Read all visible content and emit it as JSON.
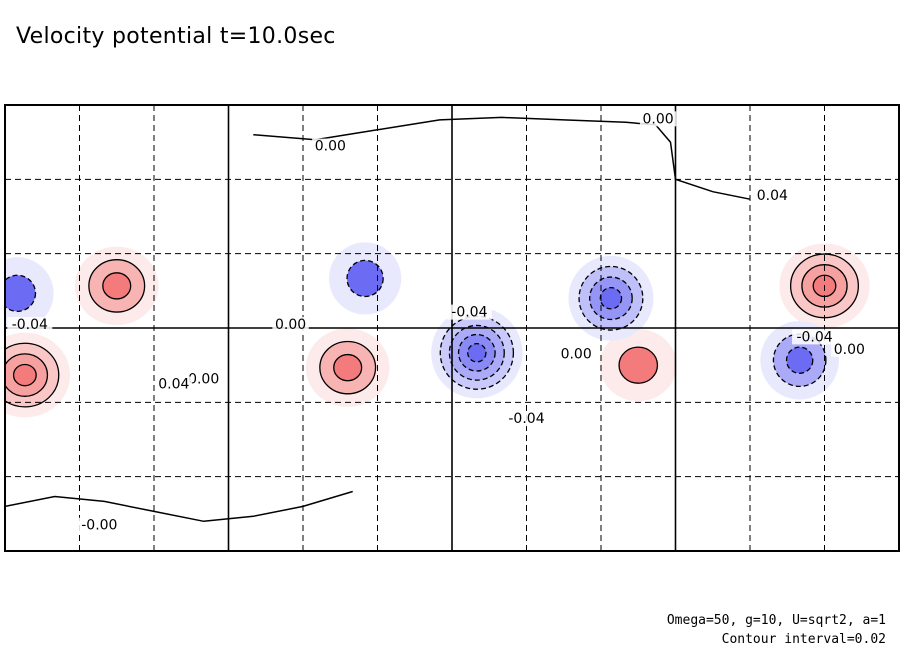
{
  "title": "Velocity potential t=10.0sec",
  "notes": {
    "parameters": "Omega=50, g=10, U=sqrt2, a=1",
    "contour_interval": "Contour interval=0.02"
  },
  "chart_data": {
    "type": "heatmap",
    "title": "Velocity potential t=10.0sec",
    "projection": "cylindrical",
    "xlim": [
      0,
      360
    ],
    "ylim": [
      -90,
      90
    ],
    "grid": "dashed, every 30 degrees; solid at 90-degree longitudes and the equator",
    "colors": {
      "positive": "#f05a5a",
      "negative": "#4646f0",
      "zero": "#ffffff"
    },
    "contour_interval": 0.02,
    "contour_labels": [
      {
        "text": "0.00",
        "lon": 131,
        "lat": 72
      },
      {
        "text": "0.00",
        "lon": 263,
        "lat": 83
      },
      {
        "text": "0.04",
        "lon": 309,
        "lat": 52
      },
      {
        "text": "-0.04",
        "lon": 10,
        "lat": 0
      },
      {
        "text": "-0.04",
        "lon": 187,
        "lat": 5
      },
      {
        "text": "0.00",
        "lon": 115,
        "lat": 0
      },
      {
        "text": "0.00",
        "lon": 80,
        "lat": -22
      },
      {
        "text": "0.04",
        "lon": 68,
        "lat": -24
      },
      {
        "text": "-0.04",
        "lon": 210,
        "lat": -38
      },
      {
        "text": "0.00",
        "lon": 230,
        "lat": -12
      },
      {
        "text": "-0.04",
        "lon": 326,
        "lat": -5
      },
      {
        "text": "0.00",
        "lon": 340,
        "lat": -10
      },
      {
        "text": "-0.00",
        "lon": 38,
        "lat": -81
      }
    ],
    "extrema": [
      {
        "sign": "positive",
        "lon": 45,
        "lat": 17,
        "value": 0.06
      },
      {
        "sign": "positive",
        "lon": 330,
        "lat": 17,
        "value": 0.08
      },
      {
        "sign": "positive",
        "lon": 8,
        "lat": -19,
        "value": 0.07
      },
      {
        "sign": "positive",
        "lon": 138,
        "lat": -16,
        "value": 0.06
      },
      {
        "sign": "positive",
        "lon": 255,
        "lat": -15,
        "value": 0.04
      },
      {
        "sign": "negative",
        "lon": 190,
        "lat": -10,
        "value": -0.1
      },
      {
        "sign": "negative",
        "lon": 244,
        "lat": 12,
        "value": -0.07
      },
      {
        "sign": "negative",
        "lon": 320,
        "lat": -13,
        "value": -0.05
      },
      {
        "sign": "negative",
        "lon": 145,
        "lat": 20,
        "value": -0.04
      },
      {
        "sign": "negative",
        "lon": 5,
        "lat": 14,
        "value": -0.03
      }
    ]
  }
}
